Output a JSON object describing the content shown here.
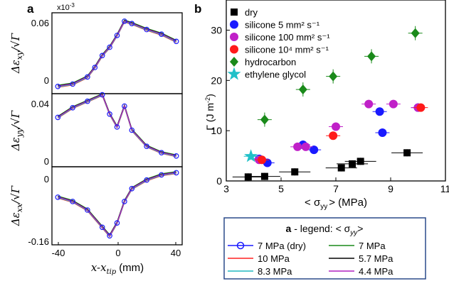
{
  "panel_a": {
    "letter": "a",
    "scale_note": "x10",
    "scale_exp": "-3",
    "xlabel": "x-x",
    "xlabel_sub": "tip",
    "xlabel_unit": "(mm)",
    "xticks": [
      "-40",
      "0",
      "40"
    ],
    "ylabels": [
      "Δε",
      "Δε",
      "Δε"
    ],
    "ylabel_subs": [
      "xy",
      "yy",
      "xx"
    ],
    "ylabel_den": "Γ",
    "yticks_top": [
      "0.06",
      "0"
    ],
    "yticks_mid": [
      "0.04",
      "0"
    ],
    "yticks_bot": [
      "0",
      "-0.16"
    ]
  },
  "panel_b": {
    "letter": "b",
    "ylabel": "Γ (J m",
    "ylabel_exp": "-2",
    "ylabel_close": ")",
    "xlabel_pre": "< σ",
    "xlabel_sub": "yy",
    "xlabel_post": "> (MPa)",
    "xticks": [
      "3",
      "5",
      "7",
      "9",
      "11"
    ],
    "yticks": [
      "0",
      "10",
      "20",
      "30"
    ],
    "legend": [
      {
        "label": "dry",
        "color": "#000000",
        "shape": "square"
      },
      {
        "label": "silicone 5 mm² s⁻¹",
        "color": "#1a1aff",
        "shape": "circle"
      },
      {
        "label": "silicone 100 mm² s⁻¹",
        "color": "#c020c8",
        "shape": "circle"
      },
      {
        "label": "silicone 10⁴ mm² s⁻¹",
        "color": "#ff1a1a",
        "shape": "circle"
      },
      {
        "label": "hydrocarbon",
        "color": "#1a8a1a",
        "shape": "diamond"
      },
      {
        "label": "ethylene glycol",
        "color": "#20c0c8",
        "shape": "star"
      }
    ]
  },
  "legend_a": {
    "title_bold": "a",
    "title_rest": " - legend:  < σ",
    "title_sub": "yy",
    "title_close": ">",
    "entries": [
      {
        "label": "7 MPa (dry)",
        "color": "#1a1aff",
        "marker": "circle"
      },
      {
        "label": "7 MPa",
        "color": "#1a8a1a"
      },
      {
        "label": "10 MPa",
        "color": "#ff2020"
      },
      {
        "label": "5.7 MPa",
        "color": "#000000"
      },
      {
        "label": "8.3 MPa",
        "color": "#20b8c0"
      },
      {
        "label": "4.4 MPa",
        "color": "#b020c0"
      }
    ]
  },
  "chart_data": [
    {
      "type": "line",
      "title": "",
      "xlabel": "x-x_tip (mm)",
      "panels": [
        {
          "ylabel": "Δε_xy/√Γ",
          "ylim": [
            0,
            0.06
          ],
          "yscale_note": "x10^-3",
          "x": [
            -40,
            -30,
            -20,
            -15,
            -10,
            -5,
            0,
            5,
            10,
            20,
            30,
            40
          ],
          "y": [
            0.002,
            0.004,
            0.01,
            0.018,
            0.028,
            0.035,
            0.045,
            0.057,
            0.055,
            0.05,
            0.046,
            0.04
          ]
        },
        {
          "ylabel": "Δε_yy/√Γ",
          "ylim": [
            0,
            0.04
          ],
          "x": [
            -40,
            -30,
            -20,
            -10,
            -5,
            0,
            5,
            10,
            20,
            30,
            40
          ],
          "y": [
            0.028,
            0.034,
            0.038,
            0.042,
            0.03,
            0.022,
            0.035,
            0.02,
            0.01,
            0.006,
            0.004
          ]
        },
        {
          "ylabel": "Δε_xx/√Γ",
          "ylim": [
            -0.16,
            0
          ],
          "x": [
            -40,
            -30,
            -20,
            -10,
            -5,
            0,
            5,
            10,
            20,
            30,
            40
          ],
          "y": [
            -0.06,
            -0.07,
            -0.09,
            -0.13,
            -0.15,
            -0.12,
            -0.07,
            -0.04,
            -0.02,
            -0.008,
            -0.003
          ]
        }
      ]
    },
    {
      "type": "scatter",
      "title": "",
      "xlabel": "<σ_yy> (MPa)",
      "ylabel": "Γ (J m^-2)",
      "xlim": [
        3,
        11
      ],
      "ylim": [
        0,
        36
      ],
      "series": [
        {
          "name": "dry",
          "x": [
            3.8,
            4.4,
            5.5,
            7.2,
            7.6,
            7.9,
            9.6
          ],
          "y": [
            0.8,
            0.9,
            1.8,
            2.6,
            3.4,
            3.9,
            5.6
          ]
        },
        {
          "name": "silicone 5 mm² s⁻¹",
          "x": [
            4.2,
            4.5,
            5.8,
            6.2,
            8.6,
            8.7,
            10.0
          ],
          "y": [
            4.4,
            3.6,
            7.2,
            6.2,
            13.8,
            9.6,
            14.6
          ]
        },
        {
          "name": "silicone 100 mm² s⁻¹",
          "x": [
            4.2,
            5.6,
            5.9,
            7.0,
            8.2,
            9.1,
            10.0
          ],
          "y": [
            4.2,
            6.8,
            6.8,
            10.8,
            15.3,
            15.3,
            14.6
          ]
        },
        {
          "name": "silicone 10⁴ mm² s⁻¹",
          "x": [
            4.3,
            6.9,
            10.1
          ],
          "y": [
            4.2,
            9.0,
            14.6
          ]
        },
        {
          "name": "hydrocarbon",
          "x": [
            4.4,
            5.8,
            6.9,
            8.3,
            9.9
          ],
          "y": [
            12.2,
            18.2,
            20.8,
            24.8,
            29.4
          ]
        },
        {
          "name": "ethylene glycol",
          "x": [
            3.9
          ],
          "y": [
            4.9
          ]
        }
      ]
    }
  ]
}
